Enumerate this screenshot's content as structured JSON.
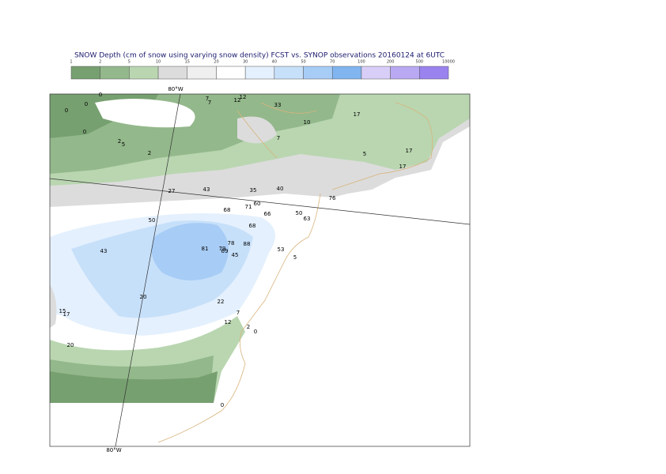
{
  "title": "SNOW Depth (cm of snow using varying snow density) FCST vs. SYNOP observations  20160124 at 6UTC",
  "colorbar": {
    "levels": [
      1,
      2,
      5,
      10,
      15,
      20,
      30,
      40,
      50,
      70,
      100,
      200,
      500,
      10000
    ],
    "colors": [
      "#77a070",
      "#93b88b",
      "#b9d6b0",
      "#dcdcdc",
      "#efefef",
      "#ffffff",
      "#e4f0fd",
      "#c7e0fa",
      "#a7ccf6",
      "#80b5f0",
      "#d8cef8",
      "#b9a8f2",
      "#9a83ee"
    ]
  },
  "meridian_labels": [
    "80°W",
    "80°W"
  ],
  "observations": [
    0,
    0,
    0,
    7,
    7,
    12,
    12,
    33,
    17,
    10,
    0,
    7,
    2,
    5,
    2,
    17,
    5,
    17,
    27,
    43,
    35,
    40,
    76,
    68,
    71,
    60,
    66,
    50,
    63,
    50,
    68,
    78,
    81,
    79,
    69,
    88,
    43,
    53,
    45,
    5,
    20,
    22,
    15,
    17,
    7,
    12,
    2,
    0,
    20,
    0
  ]
}
